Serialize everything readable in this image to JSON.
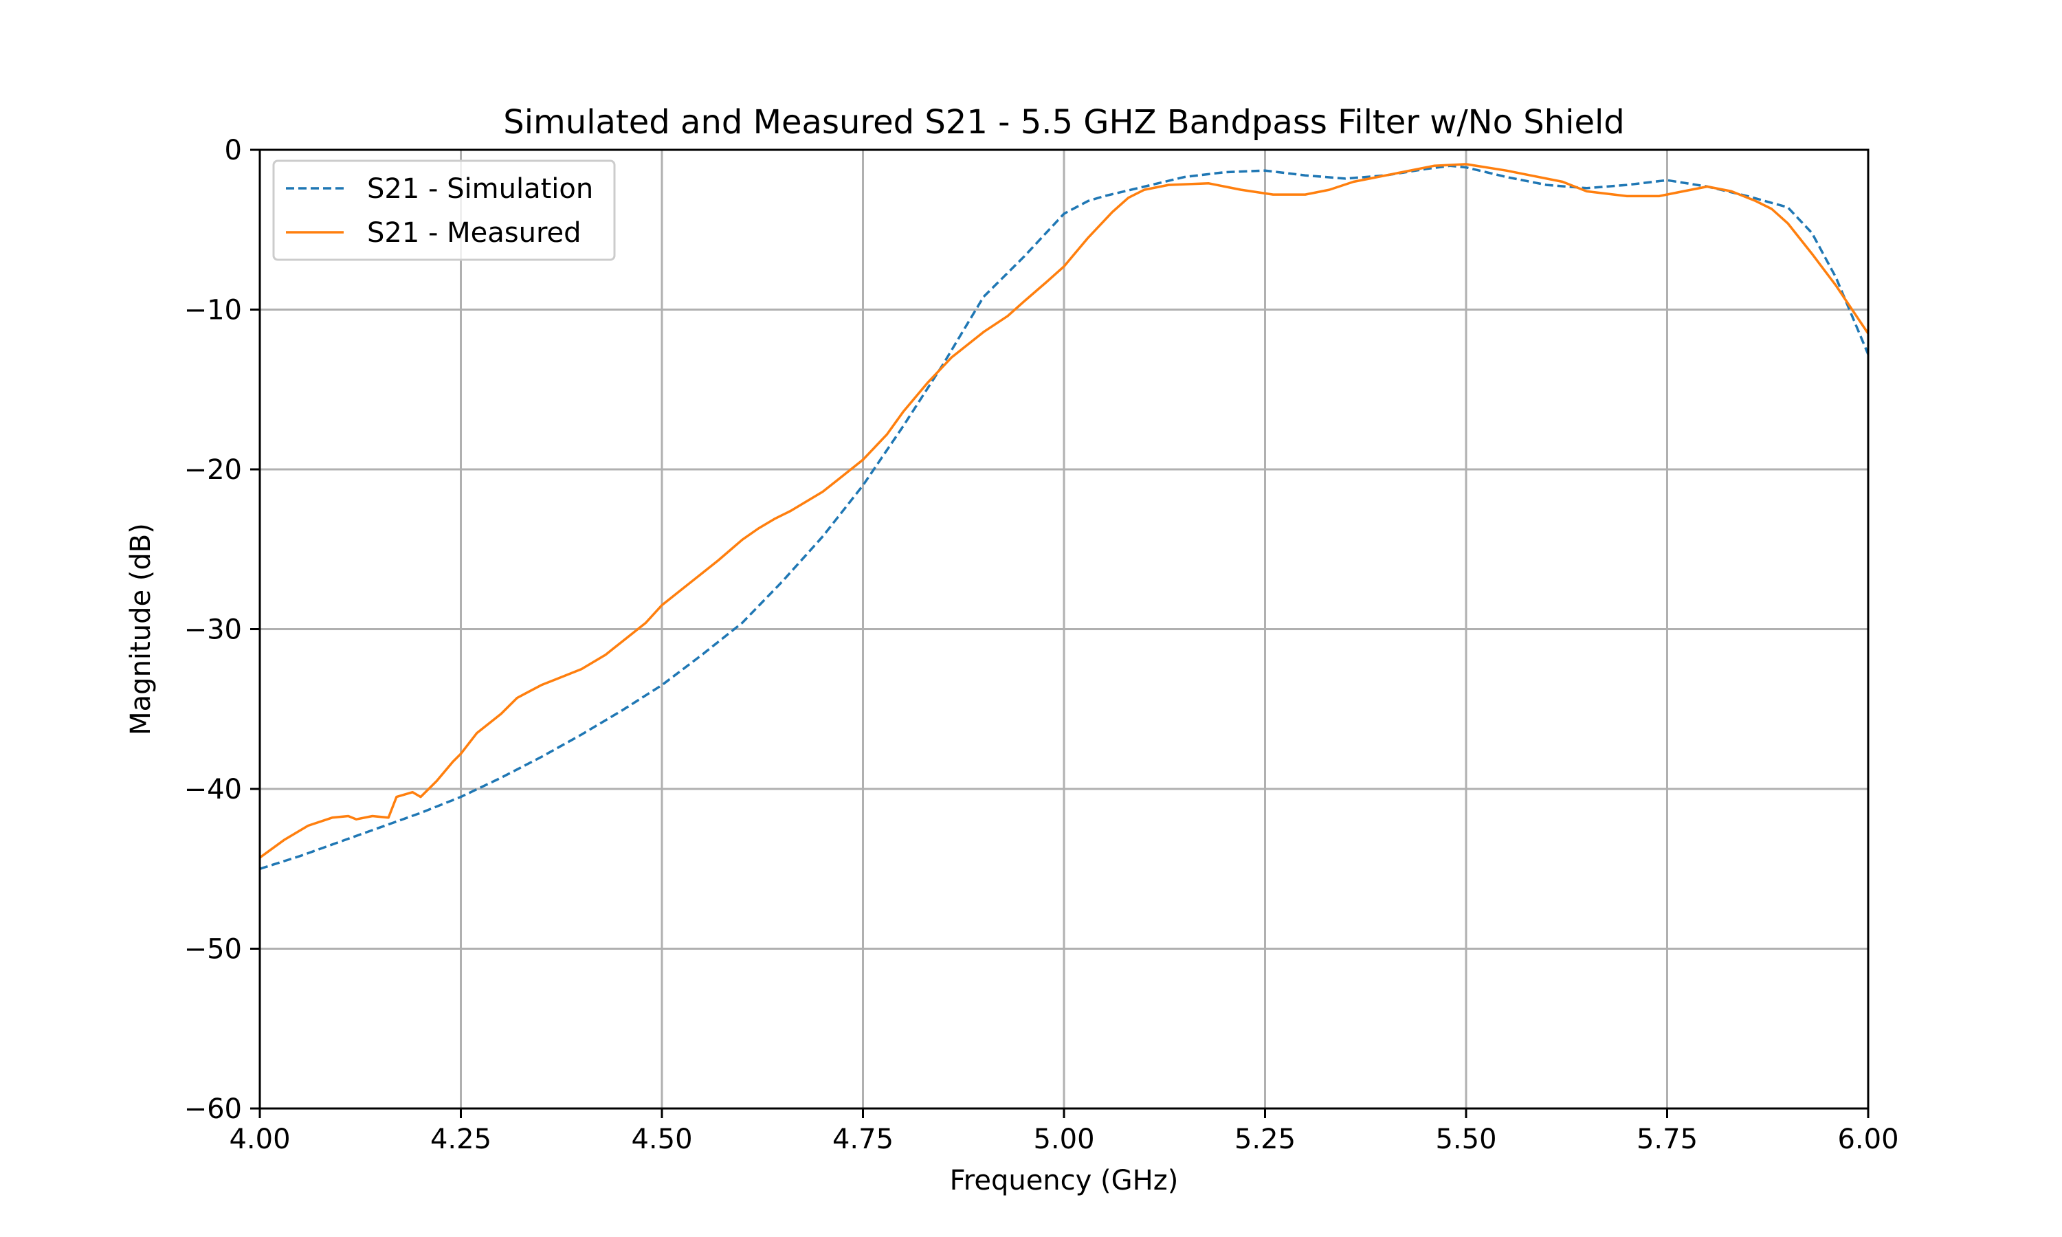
{
  "chart_data": {
    "type": "line",
    "title": "Simulated and Measured S21 - 5.5 GHZ Bandpass Filter w/No Shield",
    "xlabel": "Frequency (GHz)",
    "ylabel": "Magnitude (dB)",
    "xlim": [
      4.0,
      6.0
    ],
    "ylim": [
      -60,
      0
    ],
    "xticks": [
      4.0,
      4.25,
      4.5,
      4.75,
      5.0,
      5.25,
      5.5,
      5.75,
      6.0
    ],
    "xtick_labels": [
      "4.00",
      "4.25",
      "4.50",
      "4.75",
      "5.00",
      "5.25",
      "5.50",
      "5.75",
      "6.00"
    ],
    "yticks": [
      0,
      -10,
      -20,
      -30,
      -40,
      -50,
      -60
    ],
    "ytick_labels": [
      "0",
      "−10",
      "−20",
      "−30",
      "−40",
      "−50",
      "−60"
    ],
    "grid": true,
    "legend_position": "upper-left",
    "series": [
      {
        "name": "S21 - Simulation",
        "color": "#1f77b4",
        "style": "dashed",
        "x": [
          4.0,
          4.05,
          4.1,
          4.15,
          4.2,
          4.25,
          4.3,
          4.35,
          4.4,
          4.45,
          4.5,
          4.55,
          4.6,
          4.65,
          4.7,
          4.75,
          4.8,
          4.85,
          4.9,
          4.95,
          5.0,
          5.03,
          5.05,
          5.1,
          5.15,
          5.2,
          5.25,
          5.3,
          5.35,
          5.4,
          5.45,
          5.48,
          5.5,
          5.55,
          5.6,
          5.65,
          5.7,
          5.75,
          5.8,
          5.85,
          5.9,
          5.93,
          5.96,
          6.0
        ],
        "y": [
          -45.0,
          -44.2,
          -43.3,
          -42.4,
          -41.5,
          -40.5,
          -39.3,
          -38.0,
          -36.6,
          -35.1,
          -33.5,
          -31.6,
          -29.6,
          -27.0,
          -24.2,
          -21.0,
          -17.3,
          -13.4,
          -9.2,
          -6.7,
          -4.0,
          -3.2,
          -2.9,
          -2.3,
          -1.7,
          -1.4,
          -1.3,
          -1.6,
          -1.8,
          -1.6,
          -1.2,
          -1.0,
          -1.1,
          -1.7,
          -2.2,
          -2.4,
          -2.2,
          -1.9,
          -2.3,
          -2.9,
          -3.6,
          -5.2,
          -8.0,
          -12.8
        ]
      },
      {
        "name": "S21 - Measured",
        "color": "#ff7f0e",
        "style": "solid",
        "x": [
          4.0,
          4.03,
          4.06,
          4.09,
          4.11,
          4.12,
          4.14,
          4.16,
          4.17,
          4.19,
          4.2,
          4.22,
          4.24,
          4.25,
          4.27,
          4.3,
          4.32,
          4.35,
          4.37,
          4.4,
          4.43,
          4.45,
          4.48,
          4.5,
          4.52,
          4.55,
          4.57,
          4.6,
          4.62,
          4.64,
          4.66,
          4.68,
          4.7,
          4.72,
          4.75,
          4.78,
          4.8,
          4.83,
          4.86,
          4.9,
          4.93,
          4.95,
          4.98,
          5.0,
          5.03,
          5.06,
          5.08,
          5.1,
          5.13,
          5.18,
          5.22,
          5.26,
          5.3,
          5.33,
          5.36,
          5.38,
          5.42,
          5.46,
          5.5,
          5.55,
          5.58,
          5.62,
          5.65,
          5.7,
          5.74,
          5.77,
          5.8,
          5.83,
          5.86,
          5.88,
          5.9,
          5.93,
          5.96,
          6.0
        ],
        "y": [
          -44.3,
          -43.2,
          -42.3,
          -41.8,
          -41.7,
          -41.9,
          -41.7,
          -41.8,
          -40.5,
          -40.2,
          -40.5,
          -39.5,
          -38.3,
          -37.8,
          -36.5,
          -35.3,
          -34.3,
          -33.5,
          -33.1,
          -32.5,
          -31.6,
          -30.8,
          -29.6,
          -28.5,
          -27.7,
          -26.5,
          -25.7,
          -24.4,
          -23.7,
          -23.1,
          -22.6,
          -22.0,
          -21.4,
          -20.6,
          -19.4,
          -17.8,
          -16.4,
          -14.6,
          -13.0,
          -11.4,
          -10.4,
          -9.5,
          -8.2,
          -7.3,
          -5.5,
          -3.9,
          -3.0,
          -2.5,
          -2.2,
          -2.1,
          -2.5,
          -2.8,
          -2.8,
          -2.5,
          -2.0,
          -1.8,
          -1.4,
          -1.0,
          -0.9,
          -1.3,
          -1.6,
          -2.0,
          -2.6,
          -2.9,
          -2.9,
          -2.6,
          -2.3,
          -2.6,
          -3.2,
          -3.7,
          -4.6,
          -6.5,
          -8.5,
          -11.5
        ]
      }
    ]
  }
}
